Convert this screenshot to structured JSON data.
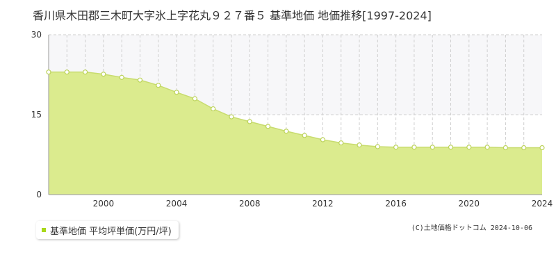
{
  "page": {
    "title": "香川県木田郡三木町大字氷上字花丸９２７番５ 基準地価 地価推移[1997-2024]",
    "credit": "(C)土地価格ドットコム 2024-10-06"
  },
  "legend": {
    "label": "基準地価 平均坪単価(万円/坪)",
    "marker_color": "#a8d81a"
  },
  "colors": {
    "fill": "#dbeb8e",
    "line": "#c8dc6f",
    "point_fill": "#ffffff",
    "point_stroke": "#bcd35a",
    "upper_band": "#f7f7f9",
    "grid": "#cfcfcf",
    "axis": "#999999"
  },
  "chart_data": {
    "type": "area",
    "title": "香川県木田郡三木町大字氷上字花丸９２７番５ 基準地価 地価推移[1997-2024]",
    "xlabel": "",
    "ylabel": "",
    "x": [
      1997,
      1998,
      1999,
      2000,
      2001,
      2002,
      2003,
      2004,
      2005,
      2006,
      2007,
      2008,
      2009,
      2010,
      2011,
      2012,
      2013,
      2014,
      2015,
      2016,
      2017,
      2018,
      2019,
      2020,
      2021,
      2022,
      2023,
      2024
    ],
    "series": [
      {
        "name": "基準地価 平均坪単価(万円/坪)",
        "values": [
          23.0,
          23.0,
          23.0,
          22.6,
          22.0,
          21.5,
          20.5,
          19.2,
          18.0,
          16.1,
          14.6,
          13.7,
          12.8,
          11.9,
          11.1,
          10.3,
          9.7,
          9.3,
          9.0,
          8.9,
          8.9,
          8.9,
          8.9,
          8.9,
          8.9,
          8.8,
          8.8,
          8.8
        ]
      }
    ],
    "xlim": [
      1997,
      2024
    ],
    "ylim": [
      0,
      30
    ],
    "y_ticks": [
      0,
      15,
      30
    ],
    "x_ticks": [
      2000,
      2004,
      2008,
      2012,
      2016,
      2020,
      2024
    ],
    "grid": true,
    "legend_position": "bottom-left"
  }
}
